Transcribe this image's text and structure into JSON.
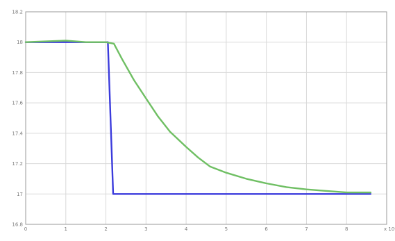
{
  "chart_data": {
    "type": "line",
    "title": "",
    "xlabel": "",
    "ylabel": "",
    "x_multiplier_label": "x 10⁴",
    "xlim": [
      0,
      9
    ],
    "ylim": [
      16.8,
      18.2
    ],
    "grid": true,
    "x_ticks": [
      0,
      1,
      2,
      3,
      4,
      5,
      6,
      7,
      8
    ],
    "x_tick_labels": [
      "0",
      "1",
      "2",
      "3",
      "4",
      "5",
      "6",
      "7",
      "8"
    ],
    "y_ticks": [
      16.8,
      17,
      17.2,
      17.4,
      17.6,
      17.8,
      18,
      18.2
    ],
    "y_tick_labels": [
      "16.8",
      "17",
      "17.2",
      "17.4",
      "17.6",
      "17.8",
      "18",
      "18.2"
    ],
    "series": [
      {
        "color": "#3b3bdc",
        "x": [
          0,
          2.05,
          2.18,
          8.6
        ],
        "y": [
          18.0,
          18.0,
          17.0,
          17.0
        ]
      },
      {
        "color": "#6fbf63",
        "x": [
          0,
          0.5,
          1.0,
          1.5,
          2.0,
          2.2,
          2.4,
          2.7,
          3.0,
          3.3,
          3.6,
          4.0,
          4.3,
          4.6,
          5.0,
          5.5,
          6.0,
          6.5,
          7.0,
          7.5,
          8.0,
          8.6
        ],
        "y": [
          18.0,
          18.005,
          18.01,
          18.0,
          18.0,
          17.99,
          17.89,
          17.75,
          17.63,
          17.51,
          17.41,
          17.31,
          17.24,
          17.18,
          17.14,
          17.1,
          17.07,
          17.045,
          17.03,
          17.02,
          17.01,
          17.01
        ]
      }
    ]
  }
}
